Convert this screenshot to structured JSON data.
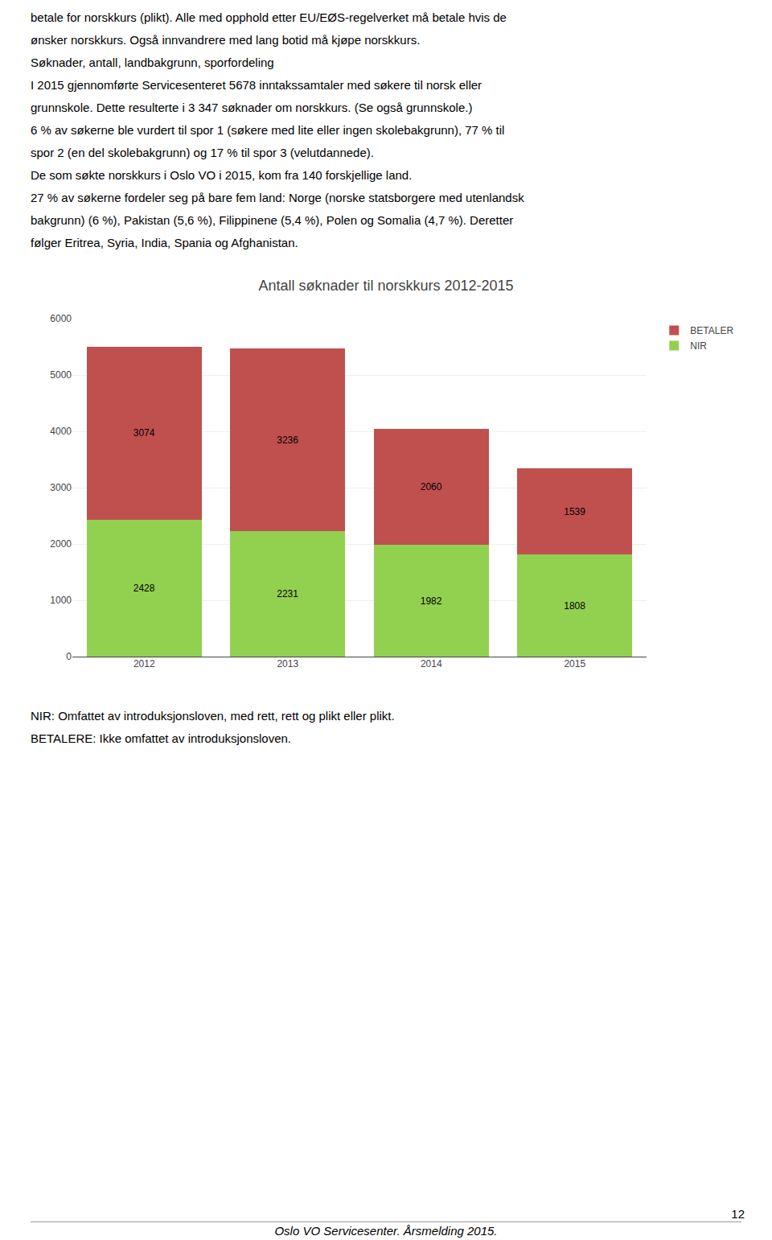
{
  "chart_data": {
    "type": "bar",
    "title": "Antall søknader til norskkurs 2012-2015",
    "categories": [
      "2012",
      "2013",
      "2014",
      "2015"
    ],
    "series": [
      {
        "name": "NIR",
        "color": "#92d050",
        "values": [
          2428,
          2231,
          1982,
          1808
        ]
      },
      {
        "name": "BETALER",
        "color": "#c0504d",
        "values": [
          3074,
          3236,
          2060,
          1539
        ]
      }
    ],
    "stacked": true,
    "data_labels": true,
    "ylim": [
      0,
      6000
    ],
    "yticks": [
      0,
      1000,
      2000,
      3000,
      4000,
      5000,
      6000
    ],
    "grid": true,
    "legend": "right"
  },
  "text_before": [
    "betale for norskkurs (plikt). Alle med opphold etter EU/EØS-regelverket må betale hvis de",
    "ønsker norskkurs. Også innvandrere med lang botid må kjøpe norskkurs.",
    "Søknader, antall, landbakgrunn, sporfordeling",
    "I 2015 gjennomførte Servicesenteret 5678 inntakssamtaler med søkere til norsk eller",
    "grunnskole. Dette resulterte i 3 347 søknader om norskkurs. (Se også grunnskole.)",
    "6 % av søkerne ble vurdert til spor 1 (søkere med lite eller ingen skolebakgrunn), 77 % til",
    "spor 2 (en del skolebakgrunn) og 17 % til spor 3 (velutdannede).",
    "De som søkte norskkurs i Oslo VO i 2015, kom fra 140 forskjellige land.",
    "27 % av søkerne fordeler seg på bare fem land: Norge (norske statsborgere med utenlandsk",
    "bakgrunn) (6 %), Pakistan (5,6 %), Filippinene (5,4 %), Polen og Somalia (4,7 %). Deretter",
    "følger Eritrea, Syria, India, Spania og Afghanistan."
  ],
  "text_after": [
    "NIR: Omfattet av introduksjonsloven, med rett, rett og plikt eller plikt.",
    "BETALERE: Ikke omfattet av introduksjonsloven."
  ],
  "page_number": "12",
  "footer": "Oslo VO Servicesenter. Årsmelding 2015."
}
